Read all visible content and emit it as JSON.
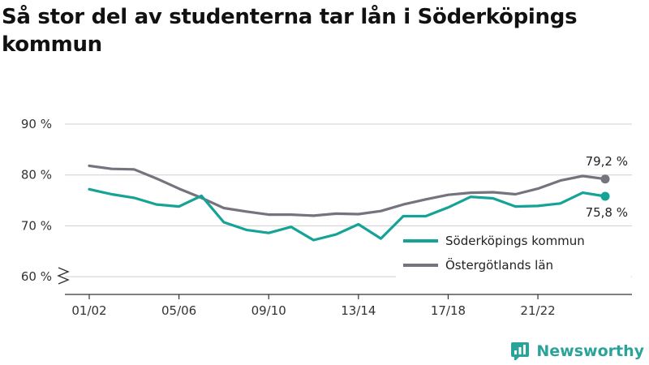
{
  "title": "Så stor del av studenterna tar lån i Söderköpings kommun",
  "brand": {
    "name": "Newsworthy"
  },
  "colors": {
    "series1": "#14a396",
    "series2": "#75737e",
    "grid": "#cfcfcf",
    "axis": "#333333",
    "brand": "#2aa39a"
  },
  "chart_data": {
    "type": "line",
    "ylim": [
      58,
      92
    ],
    "y_ticks": [
      60,
      70,
      80,
      90
    ],
    "y_tick_labels": [
      "60 %",
      "70 %",
      "80 %",
      "90 %"
    ],
    "y_axis_break": true,
    "x_tick_labels": [
      "01/02",
      "05/06",
      "09/10",
      "13/14",
      "17/18",
      "21/22"
    ],
    "x_tick_indices": [
      0,
      4,
      8,
      12,
      16,
      20
    ],
    "n_points": 24,
    "grid": "horizontal",
    "legend_placement": "bottom-right",
    "series": [
      {
        "name": "Söderköpings kommun",
        "color": "#14a396",
        "values": [
          77.2,
          76.2,
          75.5,
          74.2,
          73.8,
          75.9,
          70.7,
          69.2,
          68.6,
          69.8,
          67.2,
          68.3,
          70.3,
          67.5,
          71.9,
          71.9,
          73.6,
          75.7,
          75.4,
          73.8,
          73.9,
          74.4,
          76.5,
          75.8
        ],
        "end_label": "75,8 %"
      },
      {
        "name": "Östergötlands län",
        "color": "#75737e",
        "values": [
          81.8,
          81.2,
          81.1,
          79.3,
          77.3,
          75.5,
          73.5,
          72.8,
          72.2,
          72.2,
          72.0,
          72.4,
          72.3,
          72.9,
          74.2,
          75.2,
          76.1,
          76.5,
          76.6,
          76.2,
          77.3,
          78.9,
          79.8,
          79.2
        ],
        "end_label": "79,2 %"
      }
    ]
  }
}
